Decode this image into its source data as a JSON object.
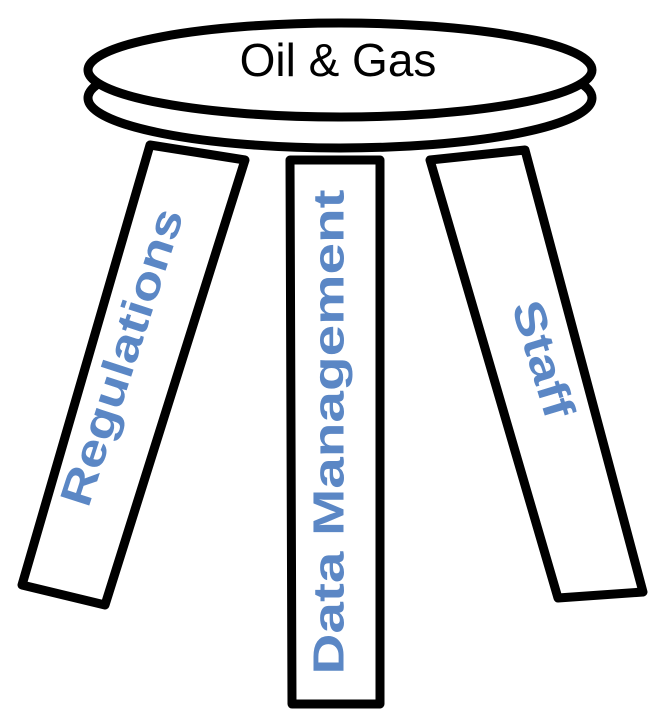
{
  "seat": {
    "label": "Oil & Gas"
  },
  "legs": [
    {
      "label": "Regulations"
    },
    {
      "label": "Data Management"
    },
    {
      "label": "Staff"
    }
  ]
}
